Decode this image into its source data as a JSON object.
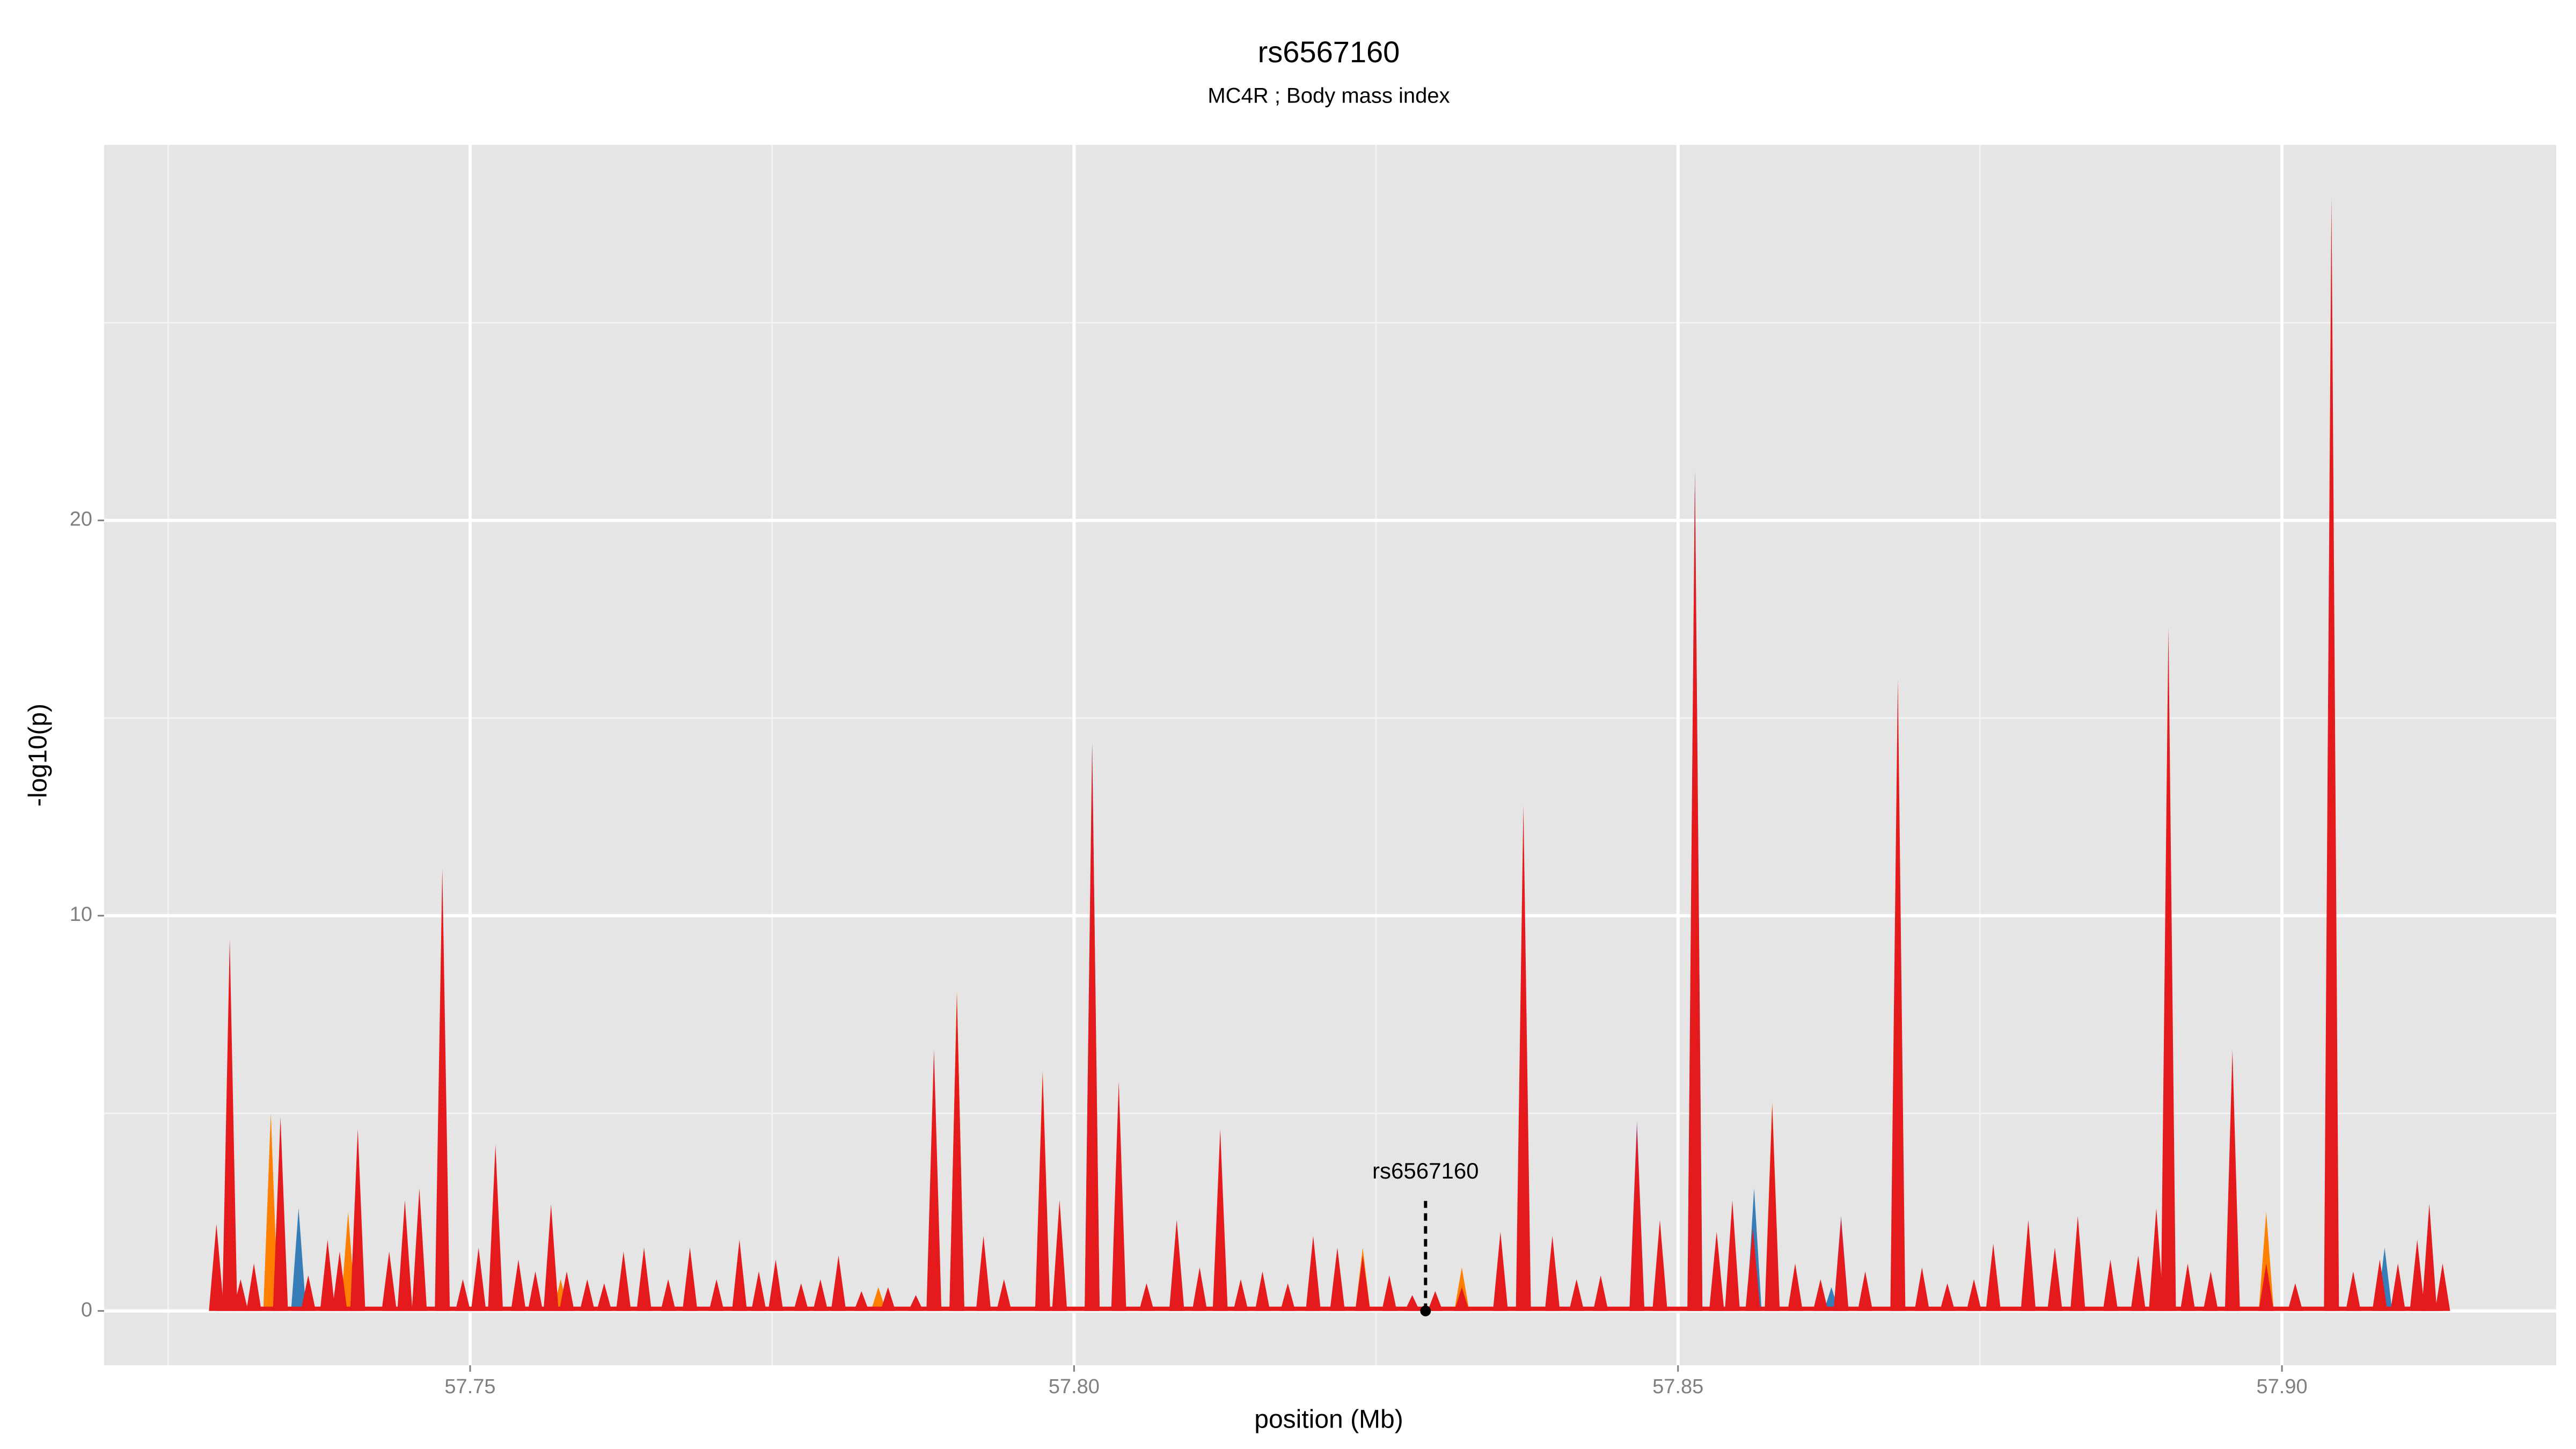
{
  "chart_data": {
    "type": "area",
    "title": "rs6567160",
    "subtitle": "MC4R ; Body mass index",
    "xlabel": "position (Mb)",
    "ylabel": "-log10(p)",
    "xlim": [
      57.7197,
      57.9227
    ],
    "ylim": [
      -1.375,
      29.5
    ],
    "xticks": [
      57.75,
      {
        "value": 57.8,
        "label": "57.80"
      },
      57.85,
      {
        "value": 57.9,
        "label": "57.90"
      }
    ],
    "yticks": [
      0,
      10,
      20
    ],
    "x_minor_grid": [
      57.725,
      57.775,
      57.825,
      57.875
    ],
    "y_minor_grid": [
      5,
      15,
      25
    ],
    "grid": true,
    "series": [
      {
        "color": "#377eb8",
        "x": [
          57.7358,
          57.8015,
          57.8085,
          57.8514,
          57.8563,
          57.8627,
          57.9085,
          57.9122
        ],
        "values": [
          2.6,
          14.4,
          2.3,
          21.3,
          3.1,
          0.6,
          1.6,
          2.7
        ]
      },
      {
        "color": "#984ea3",
        "x": [
          57.8466,
          57.8532,
          57.8635
        ],
        "values": [
          4.8,
          1.0,
          2.4
        ]
      },
      {
        "color": "#ff7f00",
        "x": [
          57.7335,
          57.7399,
          57.7575,
          57.7838,
          57.7903,
          57.7974,
          57.7988,
          57.8239,
          57.8321,
          57.8578,
          57.8987
        ],
        "values": [
          5.0,
          2.5,
          0.8,
          0.6,
          8.1,
          6.1,
          2.8,
          1.6,
          1.1,
          5.3,
          2.5
        ]
      },
      {
        "color": "#e41a1c",
        "x": [
          57.729,
          57.7301,
          57.731,
          57.7321,
          57.7343,
          57.7366,
          57.7382,
          57.7392,
          57.7407,
          57.7433,
          57.7446,
          57.7458,
          57.7477,
          57.7494,
          57.7507,
          57.7521,
          57.754,
          57.7554,
          57.7567,
          57.758,
          57.7597,
          57.7611,
          57.7627,
          57.7644,
          57.7664,
          57.7682,
          57.7704,
          57.7723,
          57.7739,
          57.7753,
          57.7774,
          57.779,
          57.7805,
          57.7824,
          57.7846,
          57.7869,
          57.7884,
          57.7903,
          57.7925,
          57.7942,
          57.7974,
          57.7988,
          57.8015,
          57.8037,
          57.806,
          57.8085,
          57.8104,
          57.8121,
          57.8138,
          57.8156,
          57.8177,
          57.8198,
          57.8218,
          57.8239,
          57.8261,
          57.828,
          57.8299,
          57.8321,
          57.8353,
          57.8372,
          57.8396,
          57.8416,
          57.8436,
          57.8466,
          57.8485,
          57.8514,
          57.8532,
          57.8545,
          57.8562,
          57.8578,
          57.8597,
          57.8618,
          57.8635,
          57.8655,
          57.8682,
          57.8702,
          57.8723,
          57.8745,
          57.8761,
          57.879,
          57.8812,
          57.8831,
          57.8858,
          57.8881,
          57.8896,
          57.8906,
          57.8922,
          57.8941,
          57.8959,
          57.8987,
          57.9011,
          57.9041,
          57.9059,
          57.9081,
          57.9096,
          57.9112,
          57.9122,
          57.9133
        ],
        "values": [
          2.2,
          9.4,
          0.8,
          1.2,
          4.9,
          0.9,
          1.8,
          1.5,
          4.6,
          1.5,
          2.8,
          3.1,
          11.2,
          0.8,
          1.6,
          4.2,
          1.3,
          1.0,
          2.7,
          1.0,
          0.8,
          0.7,
          1.5,
          1.6,
          0.8,
          1.6,
          0.8,
          1.8,
          1.0,
          1.3,
          0.7,
          0.8,
          1.4,
          0.5,
          0.6,
          0.4,
          6.6,
          8.0,
          1.9,
          0.8,
          6.0,
          2.8,
          14.3,
          5.8,
          0.7,
          2.3,
          1.1,
          4.6,
          0.8,
          1.0,
          0.7,
          1.9,
          1.6,
          1.4,
          0.9,
          0.4,
          0.5,
          0.6,
          2.0,
          12.8,
          1.9,
          0.8,
          0.9,
          4.6,
          2.3,
          21.2,
          2.0,
          2.8,
          2.1,
          5.2,
          1.2,
          0.8,
          2.3,
          1.0,
          16.0,
          1.1,
          0.7,
          0.8,
          1.7,
          2.3,
          1.6,
          2.4,
          1.3,
          1.4,
          2.6,
          17.3,
          1.2,
          1.0,
          6.6,
          1.2,
          0.7,
          28.2,
          1.0,
          1.3,
          1.2,
          1.8,
          2.7,
          1.2
        ]
      }
    ],
    "annotations": [
      {
        "text": "rs6567160",
        "x": 57.8291,
        "y": 0
      }
    ]
  }
}
